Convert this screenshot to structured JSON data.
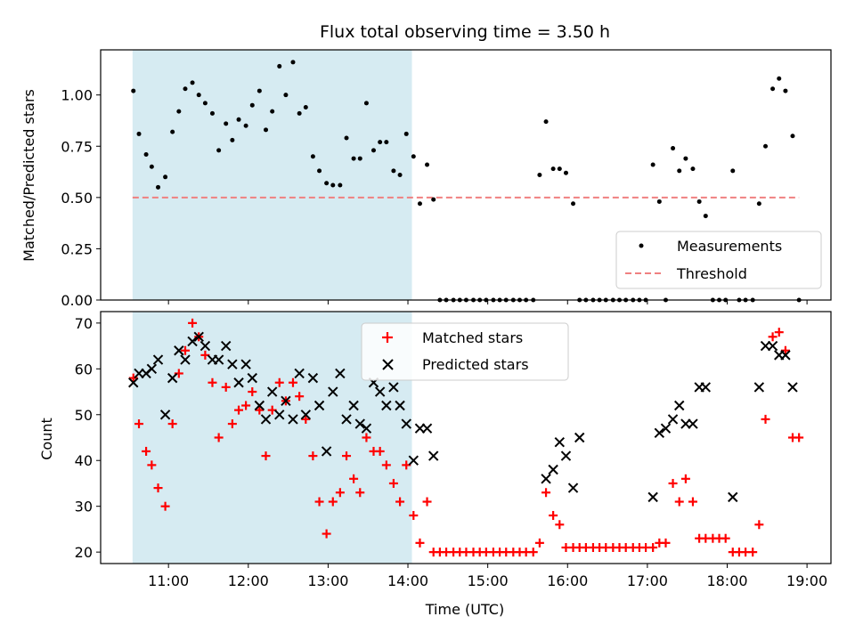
{
  "chart_data": [
    {
      "type": "scatter",
      "title": "Flux total observing time = 3.50 h",
      "xlabel": "",
      "ylabel": "Matched/Predicted stars",
      "ylim": [
        0,
        1.22
      ],
      "yticks": [
        "0.00",
        "0.25",
        "0.50",
        "0.75",
        "1.00"
      ],
      "ytick_values": [
        0,
        0.25,
        0.5,
        0.75,
        1.0
      ],
      "xlim": [
        10.15,
        19.3
      ],
      "shaded_x": [
        10.55,
        14.05
      ],
      "shade_color": "#add8e6",
      "threshold": 0.5,
      "legend_position": "lower-right",
      "series": [
        {
          "name": "Measurements",
          "color": "#000000",
          "marker": "dot",
          "x": [
            10.56,
            10.63,
            10.72,
            10.79,
            10.87,
            10.96,
            11.05,
            11.13,
            11.21,
            11.3,
            11.38,
            11.46,
            11.55,
            11.63,
            11.72,
            11.8,
            11.88,
            11.97,
            12.05,
            12.14,
            12.22,
            12.3,
            12.39,
            12.47,
            12.56,
            12.64,
            12.72,
            12.81,
            12.89,
            12.98,
            13.06,
            13.15,
            13.23,
            13.32,
            13.4,
            13.48,
            13.57,
            13.65,
            13.73,
            13.82,
            13.9,
            13.98,
            14.07,
            14.15,
            14.24,
            14.32,
            14.4,
            14.48,
            14.57,
            14.65,
            14.73,
            14.82,
            14.9,
            14.98,
            15.07,
            15.15,
            15.23,
            15.32,
            15.4,
            15.48,
            15.57,
            15.65,
            15.73,
            15.82,
            15.9,
            15.98,
            16.07,
            16.15,
            16.23,
            16.32,
            16.4,
            16.48,
            16.57,
            16.65,
            16.73,
            16.82,
            16.9,
            16.98,
            17.07,
            17.15,
            17.23,
            17.32,
            17.4,
            17.48,
            17.57,
            17.65,
            17.73,
            17.82,
            17.9,
            17.98,
            18.07,
            18.15,
            18.23,
            18.32,
            18.4,
            18.48,
            18.57,
            18.65,
            18.73,
            18.82,
            18.9
          ],
          "y": [
            1.02,
            0.81,
            0.71,
            0.65,
            0.55,
            0.6,
            0.82,
            0.92,
            1.03,
            1.06,
            1.0,
            0.96,
            0.91,
            0.73,
            0.86,
            0.78,
            0.88,
            0.85,
            0.95,
            1.02,
            0.83,
            0.92,
            1.14,
            1.0,
            1.16,
            0.91,
            0.94,
            0.7,
            0.63,
            0.57,
            0.56,
            0.56,
            0.79,
            0.69,
            0.69,
            0.96,
            0.73,
            0.77,
            0.77,
            0.63,
            0.61,
            0.81,
            0.7,
            0.47,
            0.66,
            0.49,
            0,
            0,
            0,
            0,
            0,
            0,
            0,
            0,
            0,
            0,
            0,
            0,
            0,
            0,
            0,
            0.61,
            0.87,
            0.64,
            0.64,
            0.62,
            0.47,
            0,
            0,
            0,
            0,
            0,
            0,
            0,
            0,
            0,
            0,
            0,
            0.66,
            0.48,
            0,
            0.74,
            0.63,
            0.69,
            0.64,
            0.48,
            0.41,
            0,
            0,
            0,
            0.63,
            0,
            0,
            0,
            0.47,
            0.75,
            1.03,
            1.08,
            1.02,
            0.8,
            0
          ]
        },
        {
          "name": "Threshold",
          "color": "#f08080",
          "style": "dashed"
        }
      ]
    },
    {
      "type": "scatter",
      "title": "",
      "xlabel": "Time (UTC)",
      "ylabel": "Count",
      "ylim": [
        17.5,
        72.5
      ],
      "yticks": [
        "20",
        "30",
        "40",
        "50",
        "60",
        "70"
      ],
      "ytick_values": [
        20,
        30,
        40,
        50,
        60,
        70
      ],
      "xlim": [
        10.15,
        19.3
      ],
      "xticks": [
        "11:00",
        "12:00",
        "13:00",
        "14:00",
        "15:00",
        "16:00",
        "17:00",
        "18:00",
        "19:00"
      ],
      "xtick_values": [
        11,
        12,
        13,
        14,
        15,
        16,
        17,
        18,
        19
      ],
      "shaded_x": [
        10.55,
        14.05
      ],
      "legend_position": "top-center",
      "series": [
        {
          "name": "Matched stars",
          "color": "#ff0000",
          "marker": "plus",
          "x": [
            10.56,
            10.63,
            10.72,
            10.79,
            10.87,
            10.96,
            11.05,
            11.13,
            11.21,
            11.3,
            11.38,
            11.46,
            11.55,
            11.63,
            11.72,
            11.8,
            11.88,
            11.97,
            12.05,
            12.14,
            12.22,
            12.3,
            12.39,
            12.47,
            12.56,
            12.64,
            12.72,
            12.81,
            12.89,
            12.98,
            13.06,
            13.15,
            13.23,
            13.32,
            13.4,
            13.48,
            13.57,
            13.65,
            13.73,
            13.82,
            13.9,
            13.98,
            14.07,
            14.15,
            14.24,
            14.32,
            14.4,
            14.48,
            14.57,
            14.65,
            14.73,
            14.82,
            14.9,
            14.98,
            15.07,
            15.15,
            15.23,
            15.32,
            15.4,
            15.48,
            15.57,
            15.65,
            15.73,
            15.82,
            15.9,
            15.98,
            16.07,
            16.15,
            16.23,
            16.32,
            16.4,
            16.48,
            16.57,
            16.65,
            16.73,
            16.82,
            16.9,
            16.98,
            17.07,
            17.15,
            17.23,
            17.32,
            17.4,
            17.48,
            17.57,
            17.65,
            17.73,
            17.82,
            17.9,
            17.98,
            18.07,
            18.15,
            18.23,
            18.32,
            18.4,
            18.48,
            18.57,
            18.65,
            18.73,
            18.82,
            18.9
          ],
          "y": [
            58,
            48,
            42,
            39,
            34,
            30,
            48,
            59,
            64,
            70,
            67,
            63,
            57,
            45,
            56,
            48,
            51,
            52,
            55,
            51,
            41,
            51,
            57,
            53,
            57,
            54,
            49,
            41,
            31,
            24,
            31,
            33,
            41,
            36,
            33,
            45,
            42,
            42,
            39,
            35,
            31,
            39,
            28,
            22,
            31,
            20,
            20,
            20,
            20,
            20,
            20,
            20,
            20,
            20,
            20,
            20,
            20,
            20,
            20,
            20,
            20,
            22,
            33,
            28,
            26,
            21,
            21,
            21,
            21,
            21,
            21,
            21,
            21,
            21,
            21,
            21,
            21,
            21,
            21,
            22,
            22,
            35,
            31,
            36,
            31,
            23,
            23,
            23,
            23,
            23,
            20,
            20,
            20,
            20,
            26,
            49,
            67,
            68,
            64,
            45,
            45
          ]
        },
        {
          "name": "Predicted stars",
          "color": "#000000",
          "marker": "cross",
          "x": [
            10.56,
            10.63,
            10.72,
            10.79,
            10.87,
            10.96,
            11.05,
            11.13,
            11.21,
            11.3,
            11.38,
            11.46,
            11.55,
            11.63,
            11.72,
            11.8,
            11.88,
            11.97,
            12.05,
            12.14,
            12.22,
            12.3,
            12.39,
            12.47,
            12.56,
            12.64,
            12.72,
            12.81,
            12.89,
            12.98,
            13.06,
            13.15,
            13.23,
            13.32,
            13.4,
            13.48,
            13.57,
            13.65,
            13.73,
            13.82,
            13.9,
            13.98,
            14.07,
            14.15,
            14.24,
            14.32,
            15.73,
            15.82,
            15.9,
            15.98,
            16.07,
            16.15,
            17.07,
            17.15,
            17.23,
            17.32,
            17.4,
            17.48,
            17.57,
            17.65,
            17.73,
            18.07,
            18.4,
            18.48,
            18.57,
            18.65,
            18.73,
            18.82
          ],
          "y": [
            57,
            59,
            59,
            60,
            62,
            50,
            58,
            64,
            62,
            66,
            67,
            65,
            62,
            62,
            65,
            61,
            57,
            61,
            58,
            52,
            49,
            55,
            50,
            53,
            49,
            59,
            50,
            58,
            52,
            42,
            55,
            59,
            49,
            52,
            48,
            47,
            57,
            55,
            52,
            56,
            52,
            48,
            40,
            47,
            47,
            41,
            36,
            38,
            44,
            41,
            34,
            45,
            32,
            46,
            47,
            49,
            52,
            48,
            48,
            56,
            56,
            32,
            56,
            65,
            65,
            63,
            63,
            56
          ]
        }
      ]
    }
  ]
}
